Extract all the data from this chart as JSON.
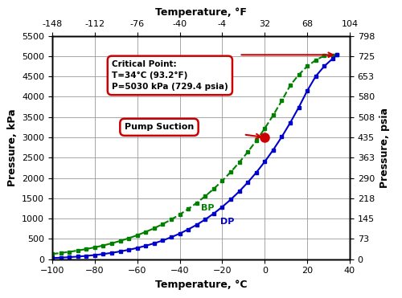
{
  "title_bottom": "Temperature, °C",
  "title_top": "Temperature, °F",
  "ylabel_left": "Pressure, kPa",
  "ylabel_right": "Pressure, psia",
  "xlim_C": [
    -100,
    40
  ],
  "ylim_kPa": [
    0,
    5500
  ],
  "xticks_C": [
    -100,
    -80,
    -60,
    -40,
    -20,
    0,
    20,
    40
  ],
  "xticks_F": [
    -148,
    -112,
    -76,
    -40,
    -4,
    32,
    68,
    104
  ],
  "yticks_kPa": [
    0,
    500,
    1000,
    1500,
    2000,
    2500,
    3000,
    3500,
    4000,
    4500,
    5000,
    5500
  ],
  "yticks_psia": [
    0,
    73,
    145,
    218,
    290,
    363,
    435,
    508,
    580,
    653,
    725,
    798
  ],
  "bp_T_C": [
    -100,
    -96,
    -92,
    -88,
    -84,
    -80,
    -76,
    -72,
    -68,
    -64,
    -60,
    -56,
    -52,
    -48,
    -44,
    -40,
    -36,
    -32,
    -28,
    -24,
    -20,
    -16,
    -12,
    -8,
    -4,
    0,
    4,
    8,
    12,
    16,
    20,
    24,
    28,
    32,
    34
  ],
  "bp_P_kPa": [
    130,
    155,
    183,
    215,
    252,
    293,
    340,
    393,
    452,
    518,
    592,
    674,
    765,
    866,
    978,
    1102,
    1238,
    1388,
    1553,
    1733,
    1931,
    2147,
    2383,
    2639,
    2917,
    3220,
    3547,
    3900,
    4280,
    4540,
    4750,
    4900,
    5010,
    5025,
    5030
  ],
  "dp_T_C": [
    -100,
    -96,
    -92,
    -88,
    -84,
    -80,
    -76,
    -72,
    -68,
    -64,
    -60,
    -56,
    -52,
    -48,
    -44,
    -40,
    -36,
    -32,
    -28,
    -24,
    -20,
    -16,
    -12,
    -8,
    -4,
    0,
    4,
    8,
    12,
    16,
    20,
    24,
    28,
    32,
    34
  ],
  "dp_P_kPa": [
    30,
    40,
    52,
    66,
    83,
    104,
    129,
    158,
    193,
    233,
    279,
    332,
    393,
    463,
    543,
    633,
    735,
    850,
    980,
    1126,
    1289,
    1470,
    1670,
    1891,
    2134,
    2401,
    2693,
    3012,
    3360,
    3738,
    4147,
    4504,
    4750,
    4940,
    5030
  ],
  "critical_T": 34,
  "critical_P": 5030,
  "pump_T": 0,
  "pump_P": 3000,
  "bp_color": "#008000",
  "dp_color": "#0000cc",
  "pump_color": "#cc0000",
  "annotation_color": "#cc0000",
  "bg_color": "#ffffff",
  "grid_color": "#999999",
  "border_color": "#000000",
  "critical_text": "Critical Point:\nT=34°C (93.2°F)\nP=5030 kPa (729.4 psia)",
  "pump_text": "Pump Suction",
  "bp_label": "BP",
  "dp_label": "DP"
}
